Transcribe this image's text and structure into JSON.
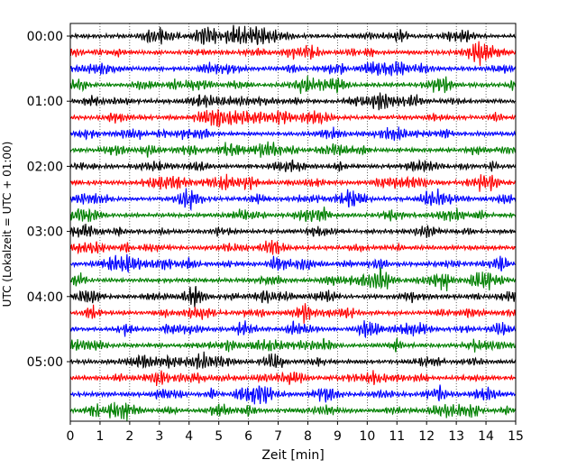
{
  "chart_data": {
    "type": "line",
    "title": "",
    "xlabel": "Zeit  [min]",
    "ylabel": "UTC (Lokalzeit = UTC + 01:00)",
    "xlim": [
      0,
      15
    ],
    "x_ticks": [
      "0",
      "1",
      "2",
      "3",
      "4",
      "5",
      "6",
      "7",
      "8",
      "9",
      "10",
      "11",
      "12",
      "13",
      "14",
      "15"
    ],
    "y_ticks": [
      "00:00",
      "01:00",
      "02:00",
      "03:00",
      "04:00",
      "05:00"
    ],
    "grid": "vertical dotted lines at each minute",
    "trace_interval_minutes": 15,
    "trace_count": 24,
    "trace_colors": [
      "#000000",
      "#ff0000",
      "#0000ff",
      "#008000"
    ],
    "traces": [
      {
        "start": "00:00",
        "color": "#000000"
      },
      {
        "start": "00:15",
        "color": "#ff0000"
      },
      {
        "start": "00:30",
        "color": "#0000ff"
      },
      {
        "start": "00:45",
        "color": "#008000"
      },
      {
        "start": "01:00",
        "color": "#000000"
      },
      {
        "start": "01:15",
        "color": "#ff0000"
      },
      {
        "start": "01:30",
        "color": "#0000ff"
      },
      {
        "start": "01:45",
        "color": "#008000"
      },
      {
        "start": "02:00",
        "color": "#000000"
      },
      {
        "start": "02:15",
        "color": "#ff0000"
      },
      {
        "start": "02:30",
        "color": "#0000ff"
      },
      {
        "start": "02:45",
        "color": "#008000"
      },
      {
        "start": "03:00",
        "color": "#000000"
      },
      {
        "start": "03:15",
        "color": "#ff0000"
      },
      {
        "start": "03:30",
        "color": "#0000ff"
      },
      {
        "start": "03:45",
        "color": "#008000"
      },
      {
        "start": "04:00",
        "color": "#000000"
      },
      {
        "start": "04:15",
        "color": "#ff0000"
      },
      {
        "start": "04:30",
        "color": "#0000ff"
      },
      {
        "start": "04:45",
        "color": "#008000"
      },
      {
        "start": "05:00",
        "color": "#000000"
      },
      {
        "start": "05:15",
        "color": "#ff0000"
      },
      {
        "start": "05:30",
        "color": "#0000ff"
      },
      {
        "start": "05:45",
        "color": "#008000"
      }
    ]
  }
}
